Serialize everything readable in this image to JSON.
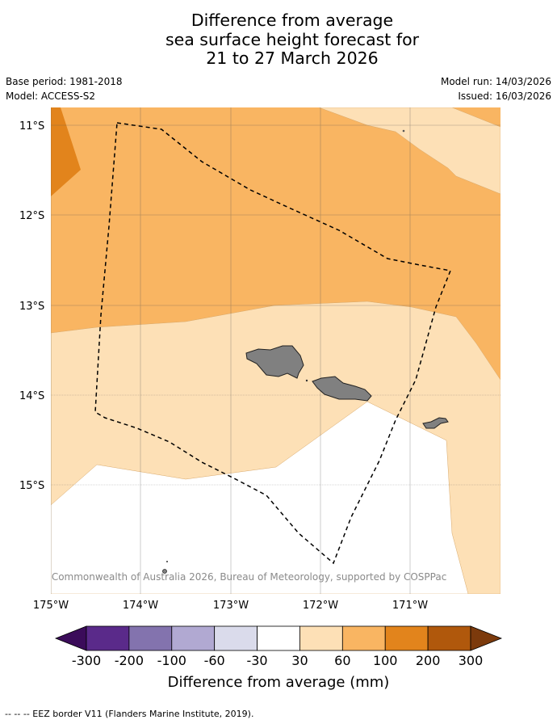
{
  "title": {
    "line1": "Difference from average",
    "line2": "sea surface height forecast for",
    "line3": "21 to 27 March 2026"
  },
  "meta": {
    "base_period": "Base period: 1981-2018",
    "model": "Model: ACCESS-S2",
    "model_run": "Model run: 14/03/2026",
    "issued": "Issued: 16/03/2026"
  },
  "map": {
    "lat_labels": [
      "11°S",
      "12°S",
      "13°S",
      "14°S",
      "15°S"
    ],
    "lon_labels": [
      "175°W",
      "174°W",
      "173°W",
      "172°W",
      "171°W"
    ],
    "copyright": "© Commonwealth of Australia 2026, Bureau of Meteorology, supported by COSPPac",
    "colors": {
      "band_30_60": "#fde0b6",
      "band_60_100": "#f9b562",
      "band_100_200": "#e2841c",
      "land": "#808080",
      "eez_border": "#000000"
    }
  },
  "colorbar": {
    "ticks": [
      "-300",
      "-200",
      "-100",
      "-60",
      "-30",
      "30",
      "60",
      "100",
      "200",
      "300"
    ],
    "colors": [
      "#3b0c5a",
      "#5a2a8a",
      "#8373ae",
      "#b1a9d2",
      "#dadbeb",
      "#ffffff",
      "#fde0b6",
      "#f9b562",
      "#e2841c",
      "#b0580c",
      "#7c3a0c"
    ],
    "label": "Difference from average (mm)"
  },
  "legend": {
    "eez_text": "--  --  -- EEZ border V11 (Flanders Marine Institute, 2019)."
  }
}
